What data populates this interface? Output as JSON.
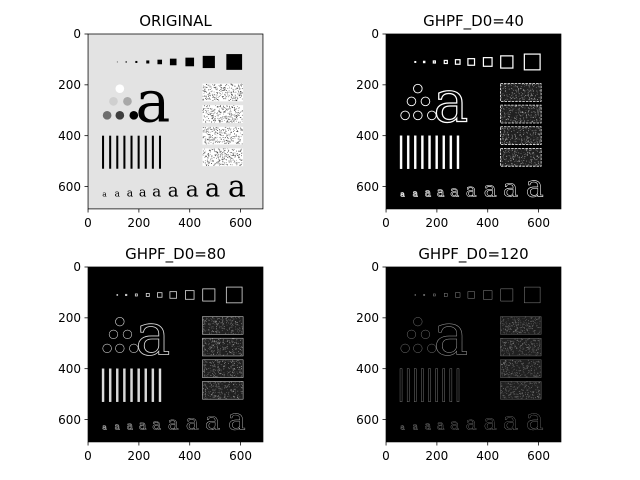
{
  "figure": {
    "panels": [
      {
        "title": "ORIGINAL",
        "variant": "original"
      },
      {
        "title": "GHPF_D0=40",
        "variant": "d40"
      },
      {
        "title": "GHPF_D0=80",
        "variant": "d80"
      },
      {
        "title": "GHPF_D0=120",
        "variant": "d120"
      }
    ],
    "image_extent": [
      0,
      688
    ],
    "x_ticks": [
      "0",
      "200",
      "400",
      "600"
    ],
    "y_ticks": [
      "0",
      "200",
      "400",
      "600"
    ],
    "glyph": "a"
  },
  "colors": {
    "original_bg": "#e3e3e3",
    "filtered_bg": "#000000",
    "dark_shape": "#000000",
    "bright_edge": "#ffffff"
  }
}
